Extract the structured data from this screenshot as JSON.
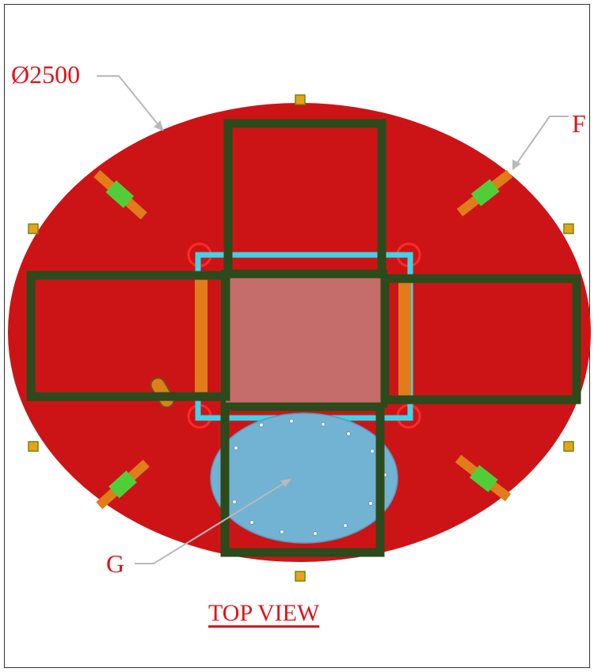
{
  "drawing": {
    "title": "TOP VIEW",
    "diameter_label": "Ø2500",
    "callout_f": "F",
    "callout_g": "G"
  },
  "colors": {
    "disc": "#cc1417",
    "frame": "#2c4a1b",
    "center_plate": "#c46d6a",
    "cyan_bracket": "#3fd3e8",
    "orange_rail": "#e07d1a",
    "hatch_plate": "#72b2d2",
    "label": "#e0141b",
    "leader": "#b9b9b9"
  },
  "icons": [
    "clamp-f",
    "hatch-g"
  ]
}
